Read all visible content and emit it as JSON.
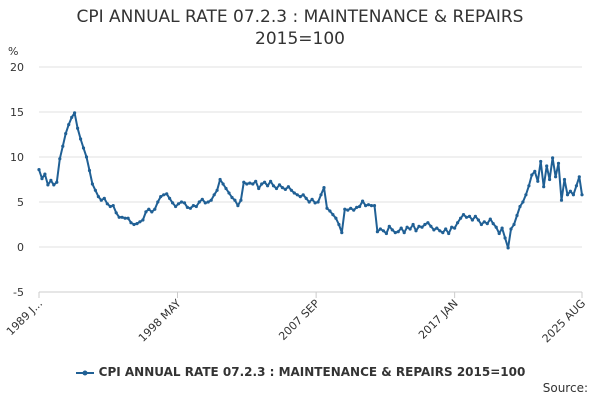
{
  "chart_data": {
    "type": "line",
    "title_line1": "CPI ANNUAL RATE 07.2.3 : MAINTENANCE & REPAIRS",
    "title_line2": "2015=100",
    "ylabel": "%",
    "ylim": [
      -5,
      20
    ],
    "yticks": [
      "20",
      "15",
      "10",
      "5",
      "0",
      "-5"
    ],
    "x_tick_labels": [
      "1989 J...",
      "1998 MAY",
      "2007 SEP",
      "2017 JAN",
      "2025 AUG"
    ],
    "x_tick_years": [
      1989.0,
      1998.33,
      2007.67,
      2017.0,
      2025.58
    ],
    "xlim": [
      1989.0,
      2025.58
    ],
    "series": [
      {
        "name": "CPI ANNUAL RATE 07.2.3 : MAINTENANCE & REPAIRS 2015=100",
        "color": "#206095",
        "points": [
          [
            1989.0,
            8.6
          ],
          [
            1989.2,
            7.6
          ],
          [
            1989.4,
            8.1
          ],
          [
            1989.6,
            6.9
          ],
          [
            1989.8,
            7.4
          ],
          [
            1990.0,
            6.9
          ],
          [
            1990.2,
            7.2
          ],
          [
            1990.4,
            9.8
          ],
          [
            1990.6,
            11.2
          ],
          [
            1990.8,
            12.6
          ],
          [
            1991.0,
            13.6
          ],
          [
            1991.2,
            14.4
          ],
          [
            1991.4,
            14.9
          ],
          [
            1991.6,
            13.2
          ],
          [
            1991.8,
            12.0
          ],
          [
            1992.0,
            11.0
          ],
          [
            1992.2,
            10.0
          ],
          [
            1992.4,
            8.5
          ],
          [
            1992.6,
            7.0
          ],
          [
            1992.8,
            6.3
          ],
          [
            1993.0,
            5.6
          ],
          [
            1993.2,
            5.2
          ],
          [
            1993.4,
            5.4
          ],
          [
            1993.6,
            4.8
          ],
          [
            1993.8,
            4.5
          ],
          [
            1994.0,
            4.6
          ],
          [
            1994.2,
            3.8
          ],
          [
            1994.4,
            3.3
          ],
          [
            1994.6,
            3.3
          ],
          [
            1994.8,
            3.2
          ],
          [
            1995.0,
            3.2
          ],
          [
            1995.2,
            2.7
          ],
          [
            1995.4,
            2.5
          ],
          [
            1995.6,
            2.6
          ],
          [
            1995.8,
            2.8
          ],
          [
            1996.0,
            3.0
          ],
          [
            1996.2,
            3.9
          ],
          [
            1996.4,
            4.2
          ],
          [
            1996.6,
            3.9
          ],
          [
            1996.8,
            4.2
          ],
          [
            1997.0,
            5.0
          ],
          [
            1997.2,
            5.6
          ],
          [
            1997.4,
            5.8
          ],
          [
            1997.6,
            5.9
          ],
          [
            1997.8,
            5.4
          ],
          [
            1998.0,
            4.9
          ],
          [
            1998.2,
            4.5
          ],
          [
            1998.4,
            4.8
          ],
          [
            1998.6,
            5.0
          ],
          [
            1998.8,
            4.9
          ],
          [
            1999.0,
            4.4
          ],
          [
            1999.2,
            4.3
          ],
          [
            1999.4,
            4.6
          ],
          [
            1999.6,
            4.5
          ],
          [
            1999.8,
            5.0
          ],
          [
            2000.0,
            5.3
          ],
          [
            2000.2,
            4.9
          ],
          [
            2000.4,
            5.0
          ],
          [
            2000.6,
            5.2
          ],
          [
            2000.8,
            5.8
          ],
          [
            2001.0,
            6.3
          ],
          [
            2001.2,
            7.5
          ],
          [
            2001.4,
            7.0
          ],
          [
            2001.6,
            6.5
          ],
          [
            2001.8,
            6.0
          ],
          [
            2002.0,
            5.5
          ],
          [
            2002.2,
            5.2
          ],
          [
            2002.4,
            4.6
          ],
          [
            2002.6,
            5.2
          ],
          [
            2002.8,
            7.2
          ],
          [
            2003.0,
            7.0
          ],
          [
            2003.2,
            7.1
          ],
          [
            2003.4,
            7.0
          ],
          [
            2003.6,
            7.3
          ],
          [
            2003.8,
            6.5
          ],
          [
            2004.0,
            7.0
          ],
          [
            2004.2,
            7.2
          ],
          [
            2004.4,
            6.8
          ],
          [
            2004.6,
            7.3
          ],
          [
            2004.8,
            6.8
          ],
          [
            2005.0,
            6.5
          ],
          [
            2005.2,
            6.9
          ],
          [
            2005.4,
            6.6
          ],
          [
            2005.6,
            6.4
          ],
          [
            2005.8,
            6.7
          ],
          [
            2006.0,
            6.3
          ],
          [
            2006.2,
            6.0
          ],
          [
            2006.4,
            5.8
          ],
          [
            2006.6,
            5.6
          ],
          [
            2006.8,
            5.8
          ],
          [
            2007.0,
            5.4
          ],
          [
            2007.2,
            5.0
          ],
          [
            2007.4,
            5.3
          ],
          [
            2007.6,
            4.9
          ],
          [
            2007.8,
            5.0
          ],
          [
            2008.0,
            5.8
          ],
          [
            2008.2,
            6.6
          ],
          [
            2008.4,
            4.3
          ],
          [
            2008.6,
            4.0
          ],
          [
            2008.8,
            3.6
          ],
          [
            2009.0,
            3.2
          ],
          [
            2009.2,
            2.5
          ],
          [
            2009.4,
            1.6
          ],
          [
            2009.6,
            4.2
          ],
          [
            2009.8,
            4.1
          ],
          [
            2010.0,
            4.3
          ],
          [
            2010.2,
            4.1
          ],
          [
            2010.4,
            4.4
          ],
          [
            2010.6,
            4.5
          ],
          [
            2010.8,
            5.1
          ],
          [
            2011.0,
            4.6
          ],
          [
            2011.2,
            4.7
          ],
          [
            2011.4,
            4.6
          ],
          [
            2011.6,
            4.6
          ],
          [
            2011.8,
            1.7
          ],
          [
            2012.0,
            2.0
          ],
          [
            2012.2,
            1.8
          ],
          [
            2012.4,
            1.5
          ],
          [
            2012.6,
            2.3
          ],
          [
            2012.8,
            1.9
          ],
          [
            2013.0,
            1.6
          ],
          [
            2013.2,
            1.7
          ],
          [
            2013.4,
            2.1
          ],
          [
            2013.6,
            1.6
          ],
          [
            2013.8,
            2.2
          ],
          [
            2014.0,
            2.0
          ],
          [
            2014.2,
            2.5
          ],
          [
            2014.4,
            1.8
          ],
          [
            2014.6,
            2.3
          ],
          [
            2014.8,
            2.2
          ],
          [
            2015.0,
            2.5
          ],
          [
            2015.2,
            2.7
          ],
          [
            2015.4,
            2.3
          ],
          [
            2015.6,
            1.9
          ],
          [
            2015.8,
            2.1
          ],
          [
            2016.0,
            1.8
          ],
          [
            2016.2,
            1.6
          ],
          [
            2016.4,
            2.0
          ],
          [
            2016.6,
            1.5
          ],
          [
            2016.8,
            2.2
          ],
          [
            2017.0,
            2.1
          ],
          [
            2017.2,
            2.7
          ],
          [
            2017.4,
            3.2
          ],
          [
            2017.6,
            3.6
          ],
          [
            2017.8,
            3.3
          ],
          [
            2018.0,
            3.4
          ],
          [
            2018.2,
            3.0
          ],
          [
            2018.4,
            3.4
          ],
          [
            2018.6,
            3.0
          ],
          [
            2018.8,
            2.5
          ],
          [
            2019.0,
            2.8
          ],
          [
            2019.2,
            2.6
          ],
          [
            2019.4,
            3.1
          ],
          [
            2019.6,
            2.6
          ],
          [
            2019.8,
            2.2
          ],
          [
            2020.0,
            1.5
          ],
          [
            2020.2,
            2.1
          ],
          [
            2020.4,
            1.0
          ],
          [
            2020.6,
            -0.1
          ],
          [
            2020.8,
            2.0
          ],
          [
            2021.0,
            2.5
          ],
          [
            2021.2,
            3.5
          ],
          [
            2021.4,
            4.5
          ],
          [
            2021.6,
            5.0
          ],
          [
            2021.8,
            5.8
          ],
          [
            2022.0,
            6.8
          ],
          [
            2022.2,
            8.0
          ],
          [
            2022.4,
            8.4
          ],
          [
            2022.6,
            7.3
          ],
          [
            2022.8,
            9.5
          ],
          [
            2023.0,
            6.7
          ],
          [
            2023.2,
            9.0
          ],
          [
            2023.4,
            7.5
          ],
          [
            2023.6,
            9.9
          ],
          [
            2023.8,
            7.8
          ],
          [
            2024.0,
            9.3
          ],
          [
            2024.2,
            5.2
          ],
          [
            2024.4,
            7.5
          ],
          [
            2024.6,
            5.8
          ],
          [
            2024.8,
            6.2
          ],
          [
            2025.0,
            5.8
          ],
          [
            2025.2,
            6.8
          ],
          [
            2025.4,
            7.8
          ],
          [
            2025.58,
            5.8
          ]
        ]
      }
    ],
    "legend_label": "CPI ANNUAL RATE 07.2.3 : MAINTENANCE & REPAIRS 2015=100",
    "source_label": "Source:"
  }
}
